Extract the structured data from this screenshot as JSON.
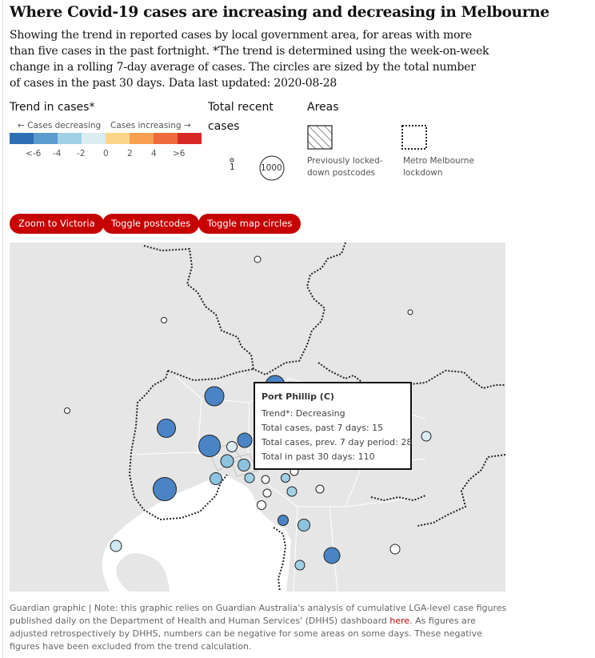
{
  "title": "Where Covid-19 cases are increasing and decreasing in Melbourne",
  "subtitle": "Showing the trend in reported cases by local government area, for areas with more than five cases in the past fortnight. *The trend is determined using the week-on-week change in a rolling 7-day average of cases. The circles are sized by the total number of cases in the past 30 days. Data last updated: 2020-08-28",
  "legend": {
    "trend_heading": "Trend in cases*",
    "decreasing_label": "← Cases decreasing",
    "increasing_label": "Cases increasing →",
    "ticks": [
      "<-6",
      "-4",
      "-2",
      "0",
      "2",
      "4",
      ">6"
    ],
    "colors": [
      "#2d6fb5",
      "#5b9bd0",
      "#9fd0e6",
      "#dcecf3",
      "#fbd68a",
      "#f7a050",
      "#ef6b3c",
      "#d82a25"
    ],
    "total_heading_1": "Total recent",
    "total_heading_2": "cases",
    "size_small": "1",
    "size_large": "1000",
    "areas_heading": "Areas",
    "area_locked_1": "Previously locked-",
    "area_locked_2": "down postcodes",
    "area_metro_1": "Metro Melbourne",
    "area_metro_2": "lockdown"
  },
  "buttons": {
    "zoom": "Zoom to Victoria",
    "postcodes": "Toggle postcodes",
    "circles": "Toggle map circles"
  },
  "tooltip": {
    "title": "Port Phillip (C)",
    "trend": "Trend*: Decreasing",
    "past7": "Total cases, past 7 days: 15",
    "prev7": "Total cases, prev. 7 day period: 28",
    "past30": "Total in past 30 days: 110"
  },
  "footer": {
    "text_before": "Guardian graphic | Note: this graphic relies on Guardian Australia's analysis of cumulative LGA-level case figures published daily on the Department of Health and Human Services' (DHHS) dashboard ",
    "link": "here",
    "text_after": ". As figures are adjusted retrospectively by DHHS, numbers can be negative for some areas on some days. These negative figures have been excluded from the trend calculation."
  }
}
